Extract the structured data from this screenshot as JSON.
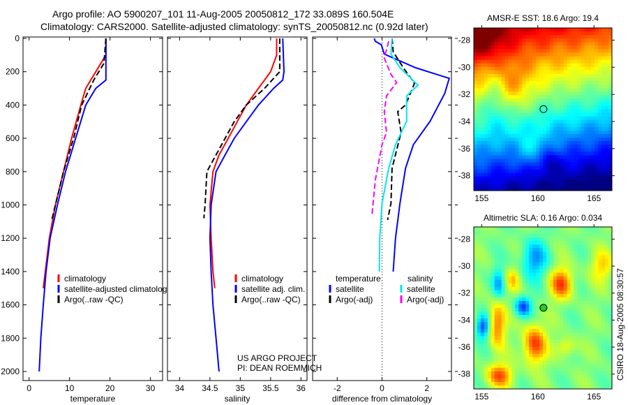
{
  "header": {
    "title_line1": "Argo profile: AO 5900207_101 11-Aug-2005 20050812_172 33.089S 160.504E",
    "title_line2": "Climatology: CARS2000. Satellite-adjusted climatology: synTS_20050812.nc (0.92d later)"
  },
  "annotations": {
    "project": "US ARGO PROJECT",
    "pi": "PI: DEAN ROEMMICH",
    "credit": "CSIRO 18-Aug-2005 08:30:57"
  },
  "colors": {
    "climatology": "#ff0000",
    "satellite": "#0000ff",
    "argo": "#000000",
    "sal_satellite": "#00e5ee",
    "sal_argo": "#ff00ff"
  },
  "chart_data": [
    {
      "type": "line",
      "name": "temperature-profile",
      "xlabel": "temperature",
      "ylabel": "",
      "xlim": [
        -1.5,
        33
      ],
      "ylim": [
        2063,
        0
      ],
      "xticks": [
        0,
        10,
        20,
        30
      ],
      "xtick_labels": [
        "0",
        "10",
        "20",
        "30"
      ],
      "yticks": [
        0,
        200,
        400,
        600,
        800,
        1000,
        1200,
        1400,
        1600,
        1800,
        2000
      ],
      "ytick_labels": [
        "0",
        "200",
        "400",
        "600",
        "800",
        "1000",
        "1200",
        "1400",
        "1600",
        "1800",
        "2000"
      ],
      "legend": [
        "climatology",
        "satellite-adjusted climatology",
        "Argo(..raw -QC)"
      ],
      "series": [
        {
          "name": "climatology",
          "color": "#ff0000",
          "dash": false,
          "depth": [
            0,
            100,
            200,
            300,
            400,
            600,
            800,
            1000,
            1200,
            1400,
            1500
          ],
          "values": [
            19,
            19,
            16.5,
            14,
            12.8,
            10.5,
            8.5,
            6.5,
            5,
            4,
            3.5
          ]
        },
        {
          "name": "satellite-adjusted climatology",
          "color": "#0000ff",
          "dash": false,
          "depth": [
            0,
            200,
            250,
            300,
            400,
            600,
            800,
            1000,
            1200,
            1400,
            1600,
            1800,
            2000
          ],
          "values": [
            19,
            19,
            19,
            16.5,
            14,
            11.5,
            9,
            7,
            5.2,
            4.2,
            3.5,
            2.9,
            2.5
          ]
        },
        {
          "name": "Argo(..raw -QC)",
          "color": "#000000",
          "dash": true,
          "depth": [
            0,
            150,
            250,
            400,
            600,
            800,
            1000,
            1100
          ],
          "values": [
            19,
            18.5,
            16,
            13,
            11,
            8.5,
            6.5,
            5.5
          ]
        }
      ]
    },
    {
      "type": "line",
      "name": "salinity-profile",
      "xlabel": "salinity",
      "xlim": [
        33.8,
        36.1
      ],
      "ylim": [
        2063,
        0
      ],
      "xticks": [
        34,
        34.5,
        35,
        35.5,
        36
      ],
      "xtick_labels": [
        "34",
        "34.5",
        "35",
        "35.5",
        "36"
      ],
      "legend": [
        "climatology",
        "satellite adj. clim.",
        "Argo(..raw -QC)"
      ],
      "series": [
        {
          "name": "climatology",
          "color": "#ff0000",
          "dash": false,
          "depth": [
            0,
            100,
            200,
            300,
            400,
            500,
            600,
            700,
            800,
            1000,
            1200,
            1400,
            1500
          ],
          "values": [
            35.6,
            35.6,
            35.5,
            35.3,
            35.1,
            34.95,
            34.8,
            34.65,
            34.55,
            34.5,
            34.52,
            34.55,
            34.58
          ]
        },
        {
          "name": "satellite adj. clim.",
          "color": "#0000ff",
          "dash": false,
          "depth": [
            0,
            200,
            250,
            300,
            400,
            500,
            600,
            700,
            800,
            1000,
            1200,
            1400,
            1600,
            1800,
            2000
          ],
          "values": [
            35.7,
            35.72,
            35.7,
            35.55,
            35.3,
            35.1,
            34.9,
            34.75,
            34.6,
            34.52,
            34.5,
            34.52,
            34.55,
            34.6,
            34.65
          ]
        },
        {
          "name": "Argo(..raw -QC)",
          "color": "#000000",
          "dash": true,
          "depth": [
            0,
            200,
            300,
            400,
            500,
            600,
            700,
            800,
            1000,
            1080
          ],
          "values": [
            35.65,
            35.65,
            35.4,
            35.1,
            34.9,
            34.75,
            34.6,
            34.45,
            34.42,
            34.4
          ]
        }
      ]
    },
    {
      "type": "line",
      "name": "difference-profile",
      "xlabel": "difference from climatology",
      "xlim": [
        -3.1,
        3.1
      ],
      "ylim": [
        2063,
        0
      ],
      "xticks": [
        -2,
        0,
        2
      ],
      "xtick_labels": [
        "-2",
        "0",
        "2"
      ],
      "legend_headers": [
        "temperature",
        "salinity"
      ],
      "legend": [
        "satellite",
        "Argo(-adj)",
        "satellite",
        "Argo(-adj)"
      ],
      "series": [
        {
          "name": "temperature satellite",
          "color": "#0000ff",
          "dash": false,
          "depth": [
            0,
            17,
            38,
            94,
            118,
            176,
            240,
            330,
            497,
            638,
            779,
            990,
            1200,
            1400
          ],
          "values": [
            -0.35,
            -0.3,
            -0.03,
            0.1,
            0.5,
            1.5,
            3.0,
            2.8,
            2.15,
            1.4,
            1.05,
            0.8,
            0.6,
            0.5
          ]
        },
        {
          "name": "temperature Argo(-adj)",
          "color": "#000000",
          "dash": true,
          "depth": [
            0,
            80,
            176,
            270,
            400,
            440,
            565,
            779,
            990,
            1090
          ],
          "values": [
            0.45,
            0.5,
            0.95,
            1.45,
            1.05,
            0.7,
            0.85,
            0.45,
            0.4,
            0.25
          ]
        },
        {
          "name": "salinity satellite",
          "color": "#00e5ee",
          "dash": false,
          "depth": [
            0,
            94,
            176,
            281,
            345,
            497,
            638,
            779,
            990,
            1200,
            1400
          ],
          "values": [
            0.45,
            0.4,
            0.8,
            1.6,
            1.1,
            1.1,
            0.6,
            0.3,
            0.0,
            -0.1,
            -0.12
          ]
        },
        {
          "name": "salinity Argo(-adj)",
          "color": "#ff00ff",
          "dash": true,
          "depth": [
            17,
            118,
            216,
            265,
            345,
            440,
            565,
            638,
            850,
            1060
          ],
          "values": [
            0.3,
            0.1,
            0.4,
            0.65,
            0.2,
            0.1,
            0.2,
            0.0,
            -0.3,
            -0.45
          ]
        }
      ]
    },
    {
      "type": "heatmap",
      "name": "sst-map",
      "title": "AMSR-E SST: 18.6 Argo: 19.4",
      "xlim": [
        154.3,
        166.6
      ],
      "ylim": [
        -39.1,
        -27.1
      ],
      "xticks": [
        155,
        160,
        165
      ],
      "xtick_labels": [
        "155",
        "160",
        "165"
      ],
      "yticks": [
        -28,
        -30,
        -32,
        -34,
        -36,
        -38
      ],
      "ytick_labels": [
        "-28",
        "-30",
        "-32",
        "-34",
        "-36",
        "-38"
      ],
      "float_position": {
        "lon": 160.504,
        "lat": -33.089
      }
    },
    {
      "type": "heatmap",
      "name": "sla-map",
      "title": "Altimetric SLA: 0.16 Argo: 0.034",
      "xlim": [
        154.3,
        166.6
      ],
      "ylim": [
        -39.1,
        -27.1
      ],
      "xticks": [
        155,
        160,
        165
      ],
      "xtick_labels": [
        "155",
        "160",
        "165"
      ],
      "yticks": [
        -28,
        -30,
        -32,
        -34,
        -36,
        -38
      ],
      "ytick_labels": [
        "-28",
        "-30",
        "-32",
        "-34",
        "-36",
        "-38"
      ],
      "float_position": {
        "lon": 160.504,
        "lat": -33.089
      }
    }
  ]
}
